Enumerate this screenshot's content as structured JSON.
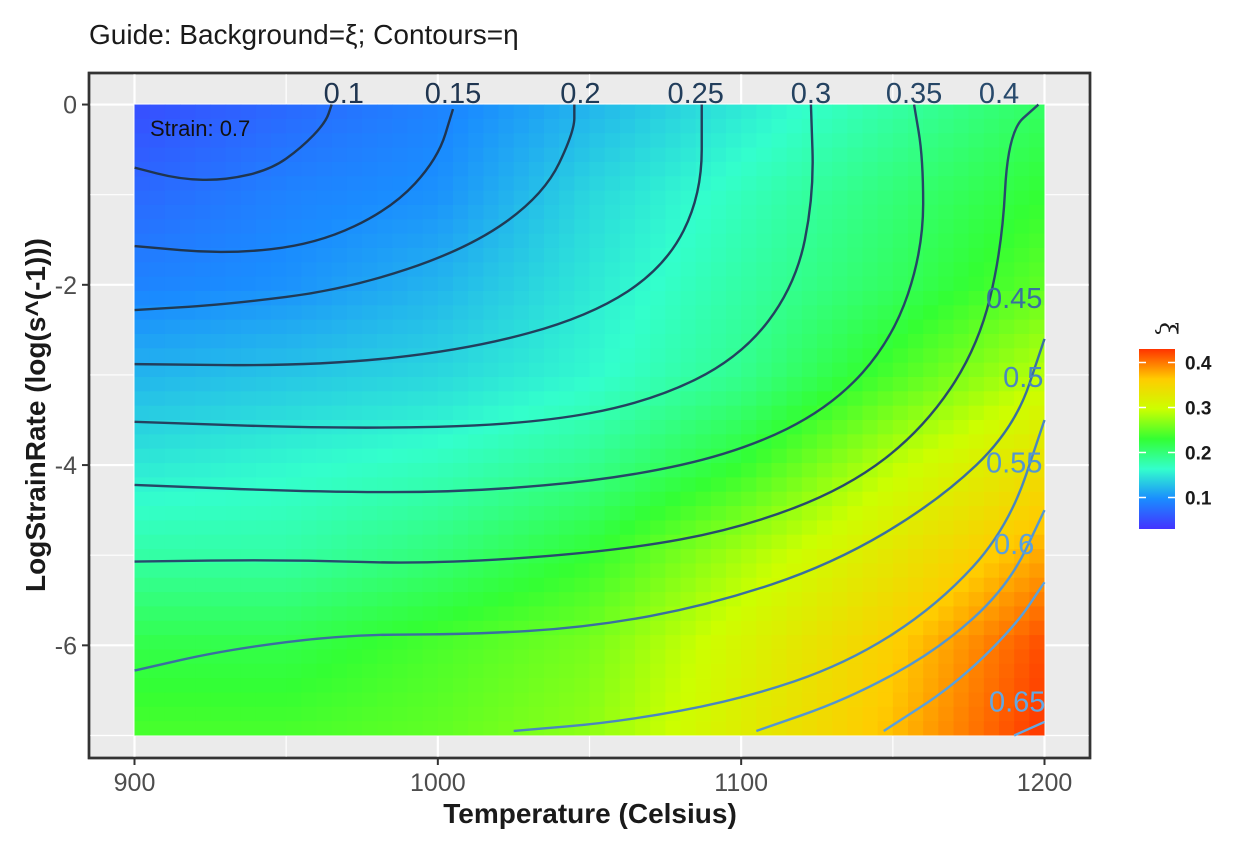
{
  "chart_data": {
    "type": "heatmap",
    "title": "Guide: Background=ξ; Contours=η",
    "xlabel": "Temperature (Celsius)",
    "ylabel": "LogStrainRate (log(s^(-1)))",
    "xlim": [
      885,
      1215
    ],
    "ylim": [
      -7.25,
      0.35
    ],
    "data_extent": {
      "x": [
        900,
        1200
      ],
      "y": [
        -7,
        0
      ]
    },
    "x_ticks": [
      900,
      1000,
      1100,
      1200
    ],
    "y_ticks": [
      0,
      -2,
      -4,
      -6
    ],
    "x_tick_labels": [
      "900",
      "1000",
      "1100",
      "1200"
    ],
    "y_tick_labels": [
      "0",
      "-2",
      "-4",
      "-6"
    ],
    "background_variable": "ξ",
    "contour_variable": "η",
    "annotation": "Strain: 0.7",
    "grid": true,
    "legend": {
      "title": "ξ",
      "position": "right",
      "ticks": [
        0.1,
        0.2,
        0.3,
        0.4
      ],
      "tick_labels": [
        "0.1",
        "0.2",
        "0.3",
        "0.4"
      ],
      "range": [
        0.03,
        0.43
      ],
      "colors": [
        "#4433ff",
        "#1a8cff",
        "#33ffcc",
        "#33ff33",
        "#ccff00",
        "#ffcc00",
        "#ff3300"
      ]
    },
    "background_field": [
      [
        0.05,
        0.07,
        0.09,
        0.12,
        0.15,
        0.18,
        0.21
      ],
      [
        0.07,
        0.09,
        0.1,
        0.14,
        0.17,
        0.2,
        0.23
      ],
      [
        0.09,
        0.1,
        0.12,
        0.15,
        0.18,
        0.21,
        0.25
      ],
      [
        0.12,
        0.13,
        0.14,
        0.16,
        0.19,
        0.24,
        0.29
      ],
      [
        0.15,
        0.16,
        0.17,
        0.19,
        0.23,
        0.29,
        0.34
      ],
      [
        0.18,
        0.18,
        0.2,
        0.23,
        0.28,
        0.33,
        0.38
      ],
      [
        0.22,
        0.22,
        0.24,
        0.26,
        0.31,
        0.36,
        0.42
      ],
      [
        0.24,
        0.24,
        0.25,
        0.27,
        0.32,
        0.37,
        0.43
      ]
    ],
    "background_field_x": [
      900,
      950,
      1000,
      1050,
      1100,
      1150,
      1200
    ],
    "background_field_y": [
      0,
      -1,
      -2,
      -3,
      -4,
      -5,
      -6,
      -7
    ],
    "contours": [
      {
        "label": "0.1",
        "label_at": [
          969,
          0.1
        ],
        "color": "#1f3550",
        "points": [
          [
            900,
            -0.7
          ],
          [
            915,
            -0.83
          ],
          [
            930,
            -0.84
          ],
          [
            945,
            -0.72
          ],
          [
            955,
            -0.48
          ],
          [
            963,
            -0.2
          ],
          [
            965,
            0
          ]
        ]
      },
      {
        "label": "0.15",
        "label_at": [
          1005,
          0.1
        ],
        "color": "#1f3550",
        "points": [
          [
            900,
            -1.57
          ],
          [
            930,
            -1.66
          ],
          [
            960,
            -1.55
          ],
          [
            985,
            -1.15
          ],
          [
            1000,
            -0.6
          ],
          [
            1005,
            -0.05
          ]
        ]
      },
      {
        "label": "0.2",
        "label_at": [
          1047,
          0.1
        ],
        "color": "#203a55",
        "points": [
          [
            900,
            -2.28
          ],
          [
            930,
            -2.22
          ],
          [
            970,
            -2.05
          ],
          [
            1010,
            -1.6
          ],
          [
            1035,
            -1.0
          ],
          [
            1045,
            -0.3
          ],
          [
            1045,
            0
          ]
        ]
      },
      {
        "label": "0.25",
        "label_at": [
          1085,
          0.1
        ],
        "color": "#223e5c",
        "points": [
          [
            900,
            -2.88
          ],
          [
            960,
            -2.9
          ],
          [
            1010,
            -2.72
          ],
          [
            1050,
            -2.35
          ],
          [
            1075,
            -1.8
          ],
          [
            1087,
            -1.0
          ],
          [
            1087,
            0
          ]
        ]
      },
      {
        "label": "0.3",
        "label_at": [
          1123,
          0.1
        ],
        "color": "#244260",
        "points": [
          [
            900,
            -3.52
          ],
          [
            970,
            -3.6
          ],
          [
            1030,
            -3.55
          ],
          [
            1070,
            -3.3
          ],
          [
            1100,
            -2.8
          ],
          [
            1118,
            -2.0
          ],
          [
            1124,
            -1.0
          ],
          [
            1123,
            0
          ]
        ]
      },
      {
        "label": "0.35",
        "label_at": [
          1157,
          0.1
        ],
        "color": "#264666",
        "points": [
          [
            900,
            -4.22
          ],
          [
            960,
            -4.3
          ],
          [
            1010,
            -4.3
          ],
          [
            1060,
            -4.15
          ],
          [
            1100,
            -3.85
          ],
          [
            1130,
            -3.35
          ],
          [
            1150,
            -2.6
          ],
          [
            1160,
            -1.6
          ],
          [
            1160,
            -0.6
          ],
          [
            1157,
            0
          ]
        ]
      },
      {
        "label": "0.4",
        "label_at": [
          1185,
          0.1
        ],
        "color": "#284a6c",
        "points": [
          [
            900,
            -5.07
          ],
          [
            950,
            -5.05
          ],
          [
            1000,
            -5.1
          ],
          [
            1060,
            -4.95
          ],
          [
            1100,
            -4.7
          ],
          [
            1135,
            -4.25
          ],
          [
            1160,
            -3.6
          ],
          [
            1178,
            -2.7
          ],
          [
            1186,
            -1.6
          ],
          [
            1188,
            -0.3
          ],
          [
            1198,
            0
          ]
        ]
      },
      {
        "label": "0.45",
        "label_at": [
          1190,
          -2.17
        ],
        "color": "#3a6fa0",
        "points": [
          [
            900,
            -6.28
          ],
          [
            930,
            -6.05
          ],
          [
            970,
            -5.88
          ],
          [
            1010,
            -5.88
          ],
          [
            1050,
            -5.8
          ],
          [
            1090,
            -5.55
          ],
          [
            1130,
            -5.1
          ],
          [
            1165,
            -4.4
          ],
          [
            1190,
            -3.6
          ],
          [
            1200,
            -2.6
          ]
        ]
      },
      {
        "label": "0.5",
        "label_at": [
          1193,
          -3.05
        ],
        "color": "#4a86bf",
        "points": [
          [
            1025,
            -6.95
          ],
          [
            1060,
            -6.85
          ],
          [
            1100,
            -6.6
          ],
          [
            1135,
            -6.2
          ],
          [
            1165,
            -5.55
          ],
          [
            1188,
            -4.7
          ],
          [
            1200,
            -3.5
          ]
        ]
      },
      {
        "label": "0.55",
        "label_at": [
          1190,
          -4.0
        ],
        "color": "#5496d0",
        "points": [
          [
            1105,
            -6.95
          ],
          [
            1135,
            -6.6
          ],
          [
            1165,
            -6.05
          ],
          [
            1188,
            -5.35
          ],
          [
            1200,
            -4.5
          ]
        ]
      },
      {
        "label": "0.6",
        "label_at": [
          1190,
          -4.9
        ],
        "color": "#5aa0dc",
        "points": [
          [
            1147,
            -6.95
          ],
          [
            1170,
            -6.45
          ],
          [
            1190,
            -5.8
          ],
          [
            1200,
            -5.3
          ]
        ]
      },
      {
        "label": "0.65",
        "label_at": [
          1191,
          -6.65
        ],
        "color": "#62a8e4",
        "points": [
          [
            1190,
            -7.0
          ],
          [
            1200,
            -6.85
          ]
        ]
      }
    ]
  }
}
